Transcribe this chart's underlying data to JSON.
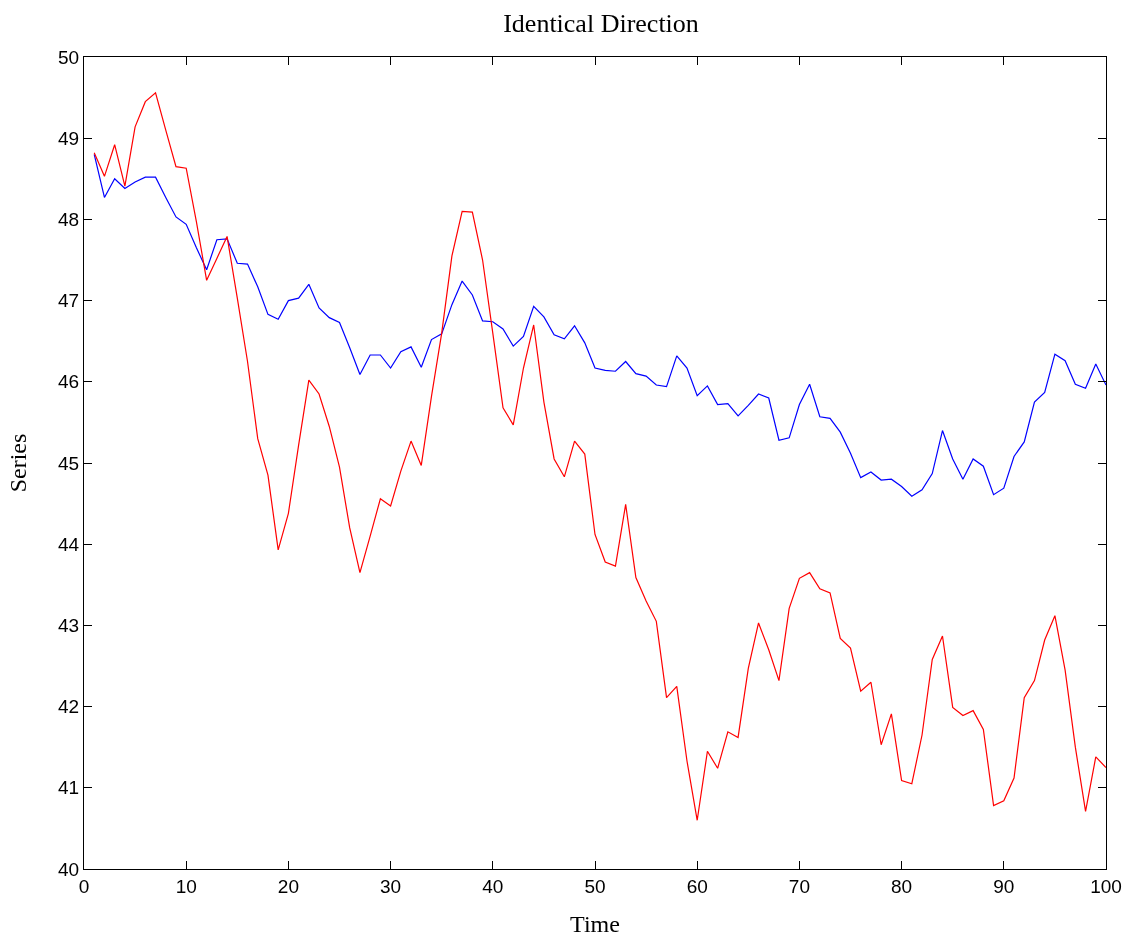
{
  "chart_data": {
    "type": "line",
    "title": "Identical Direction",
    "xlabel": "Time",
    "ylabel": "Series",
    "x": [
      1,
      2,
      3,
      4,
      5,
      6,
      7,
      8,
      9,
      10,
      11,
      12,
      13,
      14,
      15,
      16,
      17,
      18,
      19,
      20,
      21,
      22,
      23,
      24,
      25,
      26,
      27,
      28,
      29,
      30,
      31,
      32,
      33,
      34,
      35,
      36,
      37,
      38,
      39,
      40,
      41,
      42,
      43,
      44,
      45,
      46,
      47,
      48,
      49,
      50,
      51,
      52,
      53,
      54,
      55,
      56,
      57,
      58,
      59,
      60,
      61,
      62,
      63,
      64,
      65,
      66,
      67,
      68,
      69,
      70,
      71,
      72,
      73,
      74,
      75,
      76,
      77,
      78,
      79,
      80,
      81,
      82,
      83,
      84,
      85,
      86,
      87,
      88,
      89,
      90,
      91,
      92,
      93,
      94,
      95,
      96,
      97,
      98,
      99,
      100
    ],
    "series": [
      {
        "color": "#0000ff",
        "values": [
          48.8,
          48.27,
          48.5,
          48.38,
          48.46,
          48.52,
          48.52,
          48.27,
          48.03,
          47.94,
          47.65,
          47.38,
          47.75,
          47.76,
          47.46,
          47.45,
          47.17,
          46.83,
          46.77,
          47.0,
          47.03,
          47.2,
          46.91,
          46.79,
          46.73,
          46.42,
          46.09,
          46.33,
          46.33,
          46.17,
          46.37,
          46.43,
          46.18,
          46.52,
          46.59,
          46.95,
          47.24,
          47.07,
          46.75,
          46.74,
          46.65,
          46.44,
          46.56,
          46.93,
          46.8,
          46.58,
          46.53,
          46.69,
          46.48,
          46.17,
          46.14,
          46.13,
          46.25,
          46.1,
          46.07,
          45.96,
          45.94,
          46.32,
          46.17,
          45.83,
          45.95,
          45.72,
          45.73,
          45.58,
          45.71,
          45.85,
          45.8,
          45.28,
          45.31,
          45.72,
          45.97,
          45.57,
          45.55,
          45.38,
          45.12,
          44.82,
          44.89,
          44.79,
          44.8,
          44.71,
          44.59,
          44.67,
          44.87,
          45.4,
          45.05,
          44.8,
          45.05,
          44.96,
          44.61,
          44.69,
          45.08,
          45.26,
          45.75,
          45.87,
          46.34,
          46.26,
          45.97,
          45.92,
          46.22,
          45.96
        ]
      },
      {
        "color": "#ff0000",
        "values": [
          48.82,
          48.53,
          48.92,
          48.41,
          49.14,
          49.45,
          49.56,
          49.1,
          48.65,
          48.63,
          47.97,
          47.25,
          47.52,
          47.79,
          47.03,
          46.25,
          45.3,
          44.85,
          43.93,
          44.38,
          45.22,
          46.02,
          45.85,
          45.45,
          44.95,
          44.2,
          43.65,
          44.1,
          44.56,
          44.47,
          44.9,
          45.27,
          44.97,
          45.82,
          46.6,
          47.55,
          48.1,
          48.09,
          47.5,
          46.6,
          45.68,
          45.47,
          46.17,
          46.7,
          45.75,
          45.05,
          44.83,
          45.27,
          45.11,
          44.12,
          43.78,
          43.73,
          44.49,
          43.59,
          43.3,
          43.05,
          42.11,
          42.25,
          41.33,
          40.6,
          41.45,
          41.24,
          41.69,
          41.62,
          42.47,
          43.03,
          42.7,
          42.32,
          43.21,
          43.58,
          43.65,
          43.45,
          43.4,
          42.84,
          42.72,
          42.19,
          42.3,
          41.53,
          41.91,
          41.09,
          41.05,
          41.65,
          42.58,
          42.87,
          41.99,
          41.89,
          41.95,
          41.72,
          40.78,
          40.84,
          41.12,
          42.11,
          42.32,
          42.82,
          43.12,
          42.45,
          41.5,
          40.71,
          41.38,
          41.25
        ]
      }
    ],
    "xlim": [
      0,
      100
    ],
    "xticks": [
      0,
      10,
      20,
      30,
      40,
      50,
      60,
      70,
      80,
      90,
      100
    ],
    "ylim": [
      40,
      50
    ],
    "yticks": [
      40,
      41,
      42,
      43,
      44,
      45,
      46,
      47,
      48,
      49,
      50
    ],
    "grid": false,
    "marker": "none",
    "line_style": "solid"
  }
}
